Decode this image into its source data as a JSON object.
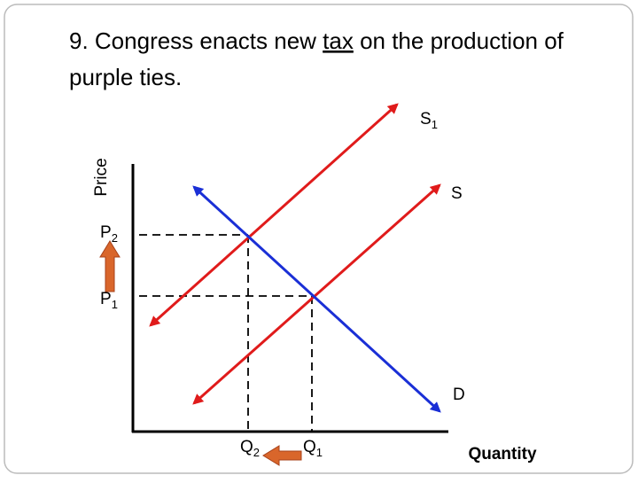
{
  "title": {
    "line1_before": "9. Congress enacts new ",
    "underlined": "tax",
    "line1_after": " on the production of",
    "line2": "purple ties."
  },
  "axes": {
    "y_label": "Price",
    "x_label": "Quantity"
  },
  "curves": {
    "supply_new": {
      "main": "S",
      "sub": "1"
    },
    "supply": {
      "main": "S"
    },
    "demand": {
      "main": "D"
    }
  },
  "prices": {
    "p2": {
      "main": "P",
      "sub": "2"
    },
    "p1": {
      "main": "P",
      "sub": "1"
    }
  },
  "quantities": {
    "q2": {
      "main": "Q",
      "sub": "2"
    },
    "q1": {
      "main": "Q",
      "sub": "1"
    }
  }
}
